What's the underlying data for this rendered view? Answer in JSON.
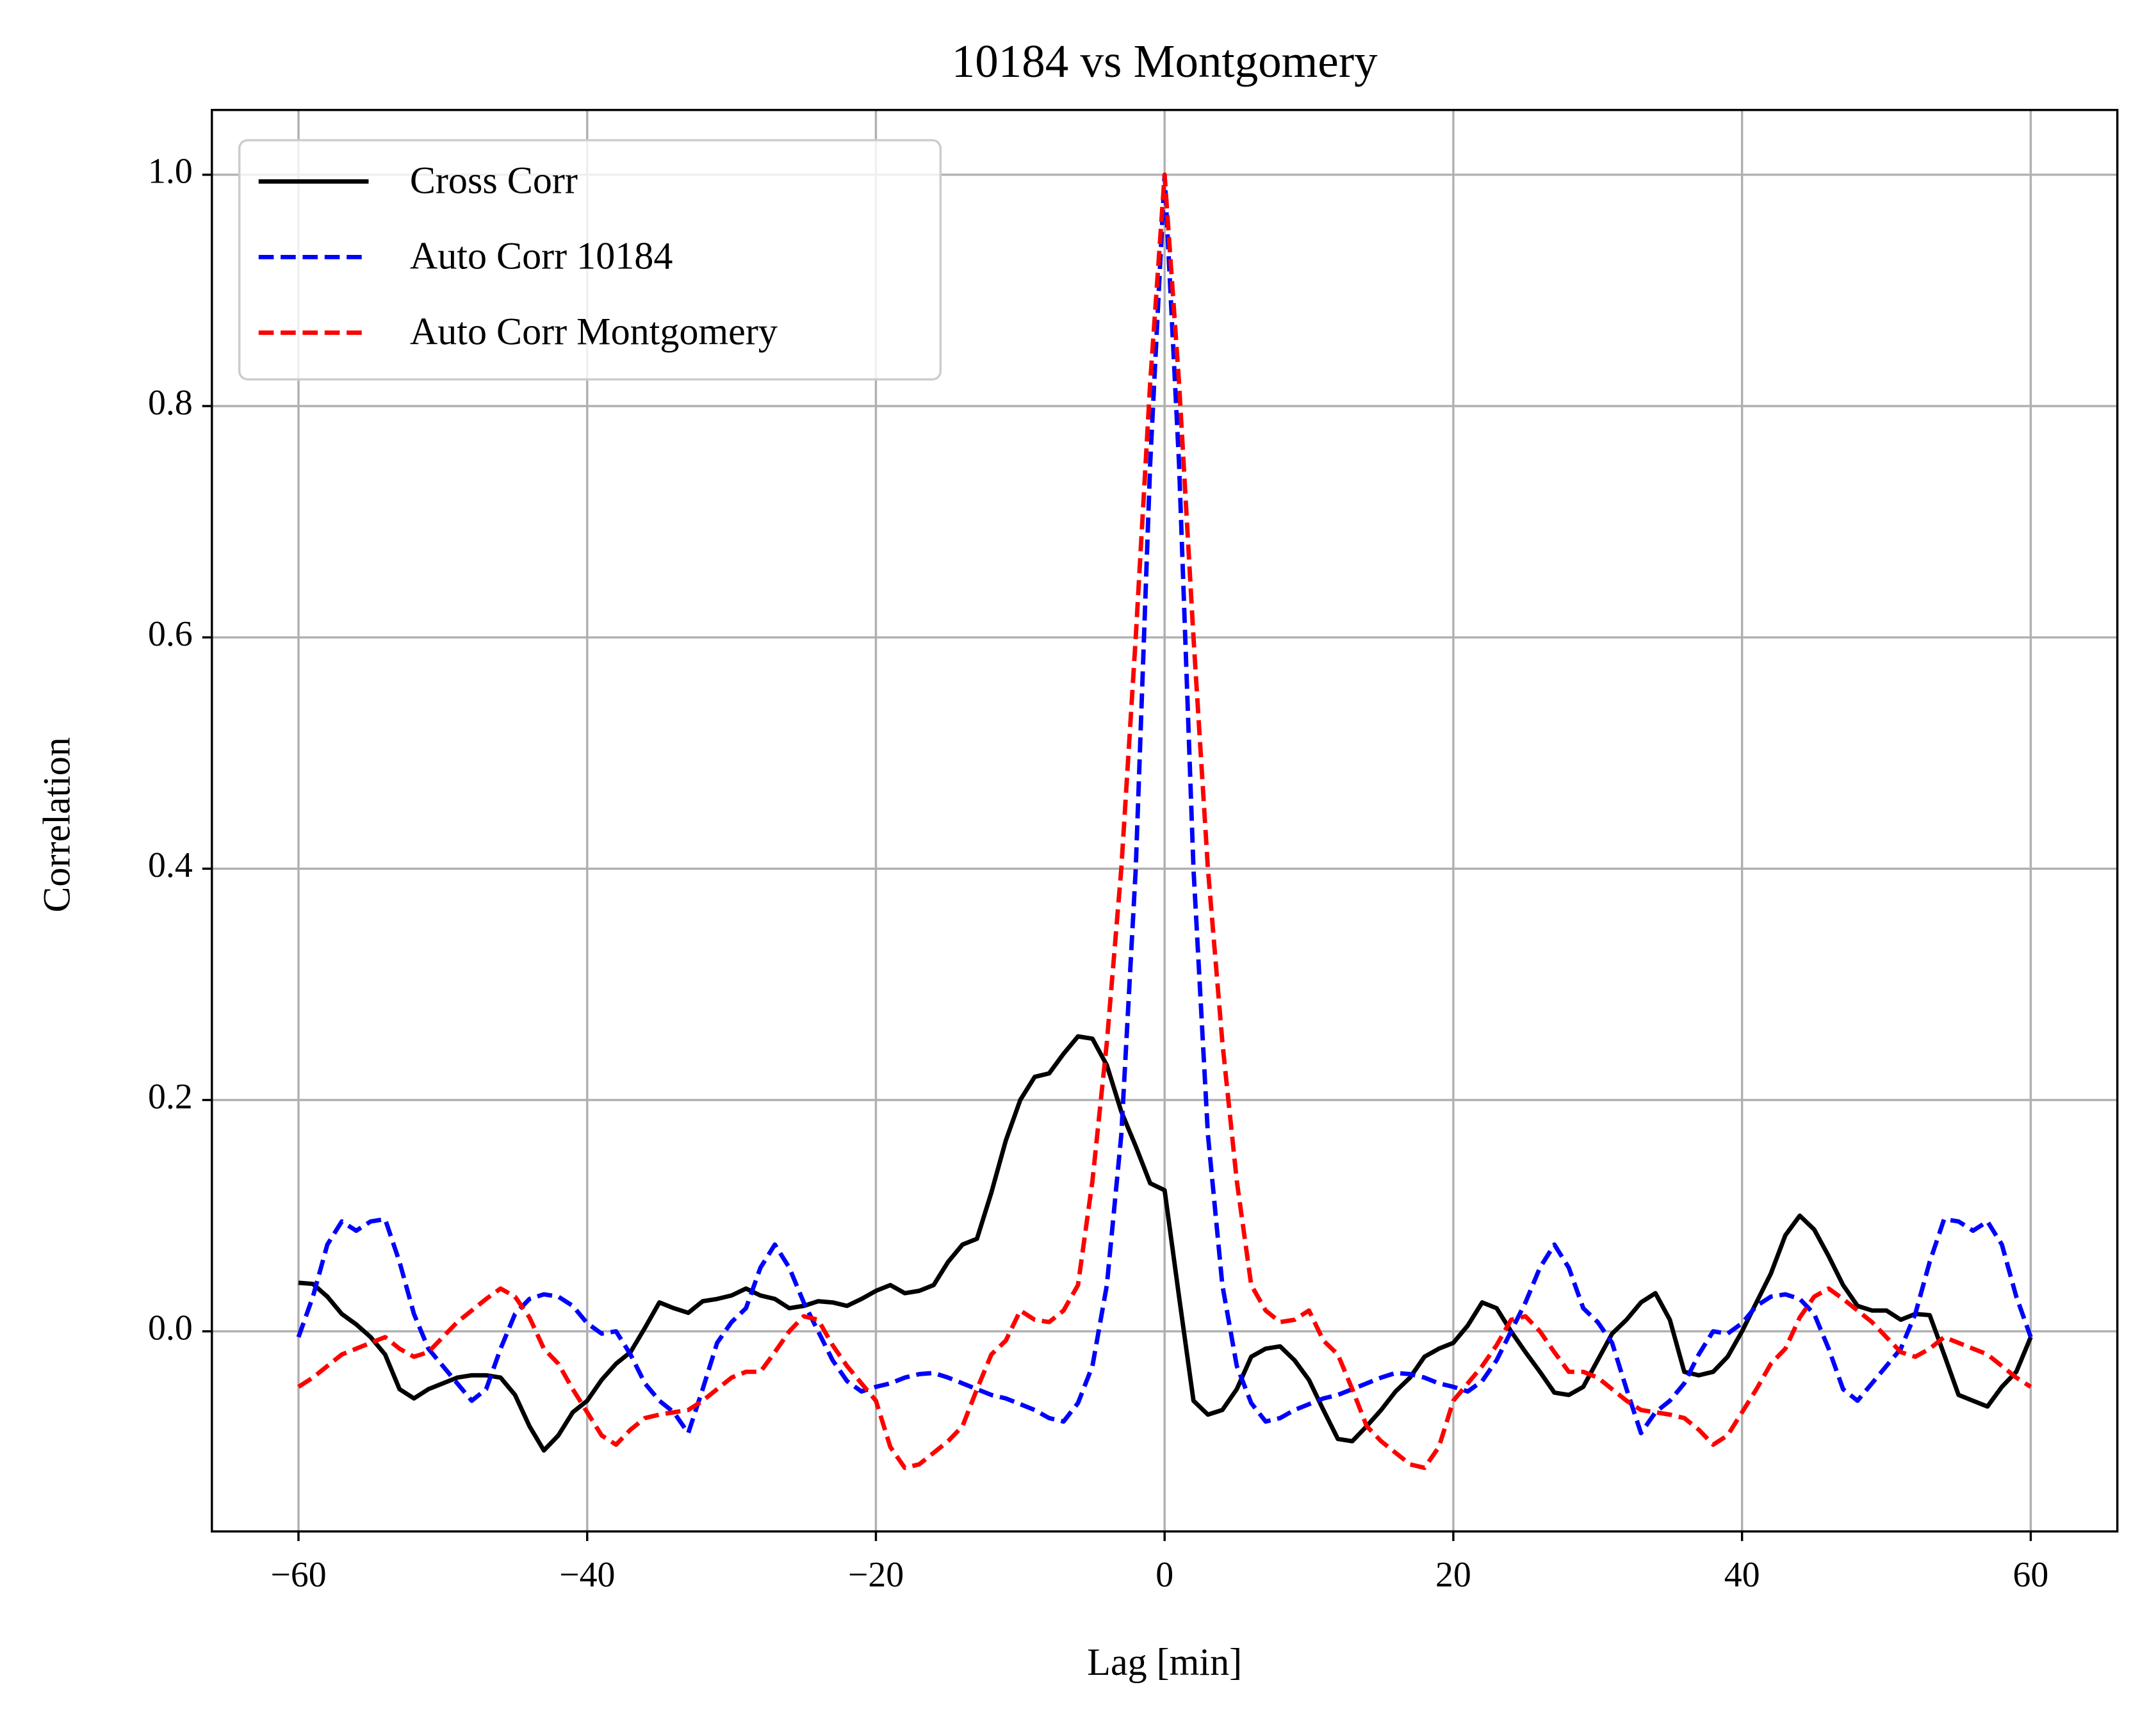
{
  "chart_data": {
    "type": "line",
    "title": "10184 vs Montgomery",
    "x_label": "Lag [min]",
    "y_label": "Correlation",
    "x": [
      -60,
      -59,
      -58,
      -57,
      -56,
      -55,
      -54,
      -53,
      -52,
      -51,
      -50,
      -49,
      -48,
      -47,
      -46,
      -45,
      -44,
      -43,
      -42,
      -41,
      -40,
      -39,
      -38,
      -37,
      -36,
      -35,
      -34,
      -33,
      -32,
      -31,
      -30,
      -29,
      -28,
      -27,
      -26,
      -25,
      -24,
      -23,
      -22,
      -21,
      -20,
      -19,
      -18,
      -17,
      -16,
      -15,
      -14,
      -13,
      -12,
      -11,
      -10,
      -9,
      -8,
      -7,
      -6,
      -5,
      -4,
      -3,
      -2,
      -1,
      0,
      1,
      2,
      3,
      4,
      5,
      6,
      7,
      8,
      9,
      10,
      11,
      12,
      13,
      14,
      15,
      16,
      17,
      18,
      19,
      20,
      21,
      22,
      23,
      24,
      25,
      26,
      27,
      28,
      29,
      30,
      31,
      32,
      33,
      34,
      35,
      36,
      37,
      38,
      39,
      40,
      41,
      42,
      43,
      44,
      45,
      46,
      47,
      48,
      49,
      50,
      51,
      52,
      53,
      54,
      55,
      56,
      57,
      58,
      59,
      60
    ],
    "series": [
      {
        "name": "Cross Corr",
        "color": "#000000",
        "dashed": false,
        "values": [
          0.042,
          0.041,
          0.03,
          0.015,
          0.006,
          -0.005,
          -0.02,
          -0.05,
          -0.058,
          -0.05,
          -0.045,
          -0.04,
          -0.038,
          -0.038,
          -0.04,
          -0.055,
          -0.082,
          -0.103,
          -0.09,
          -0.07,
          -0.06,
          -0.042,
          -0.028,
          -0.018,
          0.003,
          0.025,
          0.02,
          0.016,
          0.026,
          0.028,
          0.031,
          0.037,
          0.031,
          0.028,
          0.02,
          0.022,
          0.026,
          0.025,
          0.022,
          0.028,
          0.035,
          0.04,
          0.033,
          0.035,
          0.04,
          0.06,
          0.075,
          0.08,
          0.12,
          0.165,
          0.2,
          0.22,
          0.223,
          0.24,
          0.255,
          0.253,
          0.23,
          0.19,
          0.16,
          0.128,
          0.122,
          0.03,
          -0.06,
          -0.072,
          -0.068,
          -0.05,
          -0.022,
          -0.015,
          -0.013,
          -0.025,
          -0.042,
          -0.068,
          -0.093,
          -0.095,
          -0.082,
          -0.068,
          -0.052,
          -0.04,
          -0.022,
          -0.015,
          -0.01,
          0.005,
          0.025,
          0.02,
          0.0,
          -0.018,
          -0.035,
          -0.053,
          -0.055,
          -0.048,
          -0.025,
          -0.002,
          0.01,
          0.025,
          0.033,
          0.01,
          -0.035,
          -0.038,
          -0.035,
          -0.022,
          0.0,
          0.025,
          0.05,
          0.083,
          0.1,
          0.088,
          0.065,
          0.04,
          0.022,
          0.018,
          0.018,
          0.01,
          0.015,
          0.014,
          -0.02,
          -0.055,
          -0.06,
          -0.065,
          -0.048,
          -0.035,
          -0.005
        ]
      },
      {
        "name": "Auto Corr 10184",
        "color": "#0000ff",
        "dashed": true,
        "values": [
          -0.005,
          0.03,
          0.075,
          0.095,
          0.087,
          0.095,
          0.097,
          0.06,
          0.015,
          -0.015,
          -0.03,
          -0.045,
          -0.06,
          -0.05,
          -0.015,
          0.015,
          0.028,
          0.032,
          0.03,
          0.022,
          0.007,
          -0.002,
          0.0,
          -0.02,
          -0.045,
          -0.06,
          -0.07,
          -0.088,
          -0.05,
          -0.01,
          0.008,
          0.02,
          0.055,
          0.075,
          0.055,
          0.025,
          0.0,
          -0.025,
          -0.043,
          -0.052,
          -0.048,
          -0.045,
          -0.04,
          -0.037,
          -0.036,
          -0.04,
          -0.045,
          -0.05,
          -0.055,
          -0.058,
          -0.063,
          -0.068,
          -0.075,
          -0.078,
          -0.062,
          -0.03,
          0.04,
          0.17,
          0.4,
          0.75,
          1.0,
          0.75,
          0.4,
          0.17,
          0.04,
          -0.03,
          -0.062,
          -0.078,
          -0.075,
          -0.068,
          -0.063,
          -0.058,
          -0.055,
          -0.05,
          -0.045,
          -0.04,
          -0.036,
          -0.037,
          -0.04,
          -0.045,
          -0.048,
          -0.052,
          -0.043,
          -0.025,
          0.0,
          0.025,
          0.055,
          0.075,
          0.055,
          0.02,
          0.008,
          -0.01,
          -0.05,
          -0.088,
          -0.07,
          -0.06,
          -0.045,
          -0.02,
          0.0,
          -0.002,
          0.007,
          0.022,
          0.03,
          0.032,
          0.028,
          0.015,
          -0.015,
          -0.05,
          -0.06,
          -0.045,
          -0.03,
          -0.015,
          0.015,
          0.06,
          0.097,
          0.095,
          0.087,
          0.095,
          0.075,
          0.03,
          -0.005
        ]
      },
      {
        "name": "Auto Corr Montgomery",
        "color": "#ff0000",
        "dashed": true,
        "values": [
          -0.048,
          -0.04,
          -0.03,
          -0.02,
          -0.015,
          -0.01,
          -0.005,
          -0.015,
          -0.022,
          -0.018,
          -0.005,
          0.008,
          0.018,
          0.028,
          0.037,
          0.03,
          0.012,
          -0.015,
          -0.028,
          -0.05,
          -0.07,
          -0.09,
          -0.098,
          -0.085,
          -0.075,
          -0.072,
          -0.07,
          -0.068,
          -0.06,
          -0.05,
          -0.04,
          -0.035,
          -0.035,
          -0.018,
          0.0,
          0.013,
          0.01,
          -0.012,
          -0.03,
          -0.045,
          -0.06,
          -0.1,
          -0.118,
          -0.115,
          -0.105,
          -0.095,
          -0.082,
          -0.05,
          -0.02,
          -0.008,
          0.018,
          0.01,
          0.008,
          0.018,
          0.04,
          0.13,
          0.25,
          0.4,
          0.6,
          0.82,
          1.0,
          0.82,
          0.6,
          0.4,
          0.25,
          0.13,
          0.04,
          0.018,
          0.008,
          0.01,
          0.018,
          -0.008,
          -0.02,
          -0.05,
          -0.082,
          -0.095,
          -0.105,
          -0.115,
          -0.118,
          -0.1,
          -0.06,
          -0.045,
          -0.03,
          -0.012,
          0.01,
          0.013,
          0.0,
          -0.018,
          -0.035,
          -0.035,
          -0.04,
          -0.05,
          -0.06,
          -0.068,
          -0.07,
          -0.072,
          -0.075,
          -0.085,
          -0.098,
          -0.09,
          -0.07,
          -0.05,
          -0.028,
          -0.015,
          0.012,
          0.03,
          0.037,
          0.028,
          0.018,
          0.008,
          -0.005,
          -0.018,
          -0.022,
          -0.015,
          -0.005,
          -0.01,
          -0.015,
          -0.02,
          -0.03,
          -0.04,
          -0.048
        ]
      }
    ],
    "xlim": [
      -66,
      66
    ],
    "xticks": [
      {
        "value": -60,
        "label": "−60"
      },
      {
        "value": -40,
        "label": "−40"
      },
      {
        "value": -20,
        "label": "−20"
      },
      0,
      20,
      40,
      60
    ],
    "ylim": [
      -0.173,
      1.056
    ],
    "yticks": [
      {
        "value": 0,
        "label": "0.0"
      },
      {
        "value": 0.2,
        "label": "0.2"
      },
      {
        "value": 0.4,
        "label": "0.4"
      },
      {
        "value": 0.6,
        "label": "0.6"
      },
      {
        "value": 0.8,
        "label": "0.8"
      },
      {
        "value": 1.0,
        "label": "1.0"
      }
    ],
    "grid": true,
    "legend": "upper left"
  }
}
